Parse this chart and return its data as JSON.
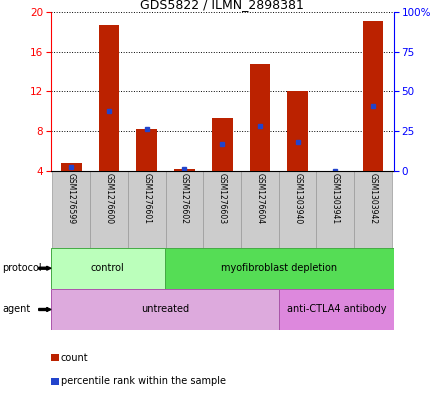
{
  "title": "GDS5822 / ILMN_2898381",
  "samples": [
    "GSM1276599",
    "GSM1276600",
    "GSM1276601",
    "GSM1276602",
    "GSM1276603",
    "GSM1276604",
    "GSM1303940",
    "GSM1303941",
    "GSM1303942"
  ],
  "count_values": [
    4.8,
    18.7,
    8.2,
    4.2,
    9.3,
    14.8,
    12.0,
    4.0,
    19.1
  ],
  "percentile_values": [
    4.4,
    10.0,
    8.2,
    4.15,
    6.7,
    8.5,
    6.9,
    4.0,
    10.5
  ],
  "ylim_left": [
    4,
    20
  ],
  "ylim_right": [
    0,
    100
  ],
  "yticks_left": [
    4,
    8,
    12,
    16,
    20
  ],
  "yticks_right": [
    0,
    25,
    50,
    75,
    100
  ],
  "ytick_labels_right": [
    "0",
    "25",
    "50",
    "75",
    "100%"
  ],
  "bar_color": "#bb2200",
  "percentile_color": "#2244cc",
  "grid_color": "#000000",
  "protocol_groups": [
    {
      "label": "control",
      "start": 0,
      "end": 3,
      "color": "#bbffbb"
    },
    {
      "label": "myofibroblast depletion",
      "start": 3,
      "end": 9,
      "color": "#55dd55"
    }
  ],
  "agent_groups": [
    {
      "label": "untreated",
      "start": 0,
      "end": 6,
      "color": "#ddaadd"
    },
    {
      "label": "anti-CTLA4 antibody",
      "start": 6,
      "end": 9,
      "color": "#dd88dd"
    }
  ],
  "protocol_label": "protocol",
  "agent_label": "agent",
  "legend_count_label": "count",
  "legend_percentile_label": "percentile rank within the sample",
  "background_color": "#ffffff",
  "plot_bg_color": "#ffffff",
  "sample_box_color": "#cccccc",
  "bar_width": 0.55
}
